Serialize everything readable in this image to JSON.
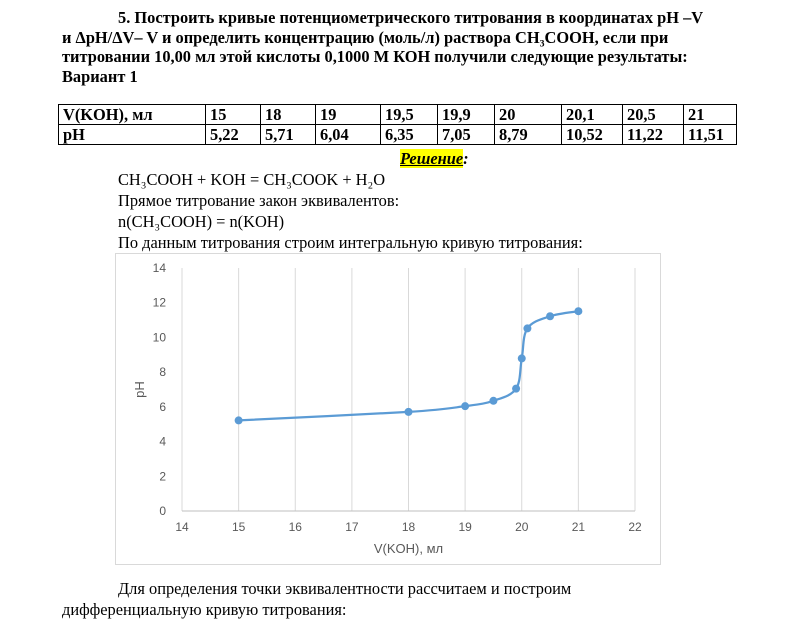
{
  "problem": {
    "line1": "5. Построить кривые потенциометрического титрования в координатах pH –V",
    "line2": "и ΔpH/ΔV– V и определить концентрацию (моль/л) раствора CH₃COOH, если при",
    "line3": "титровании 10,00 мл этой кислоты 0,1000 М КОН получили следующие результаты:",
    "variant": "Вариант 1"
  },
  "table": {
    "row1_header": "V(KOH), мл",
    "row1": [
      "15",
      "18",
      "19",
      "19,5",
      "19,9",
      "20",
      "20,1",
      "20,5",
      "21"
    ],
    "row2_header": "pH",
    "row2": [
      "5,22",
      "5,71",
      "6,04",
      "6,35",
      "7,05",
      "8,79",
      "10,52",
      "11,22",
      "11,51"
    ]
  },
  "solution": {
    "title": "Решение",
    "colon": ":",
    "reaction": "CH₃COOH + KOH = CH₃COOK + H₂O",
    "law": "Прямое титрование закон эквивалентов:",
    "equality": "n(CH₃COOH) = n(KOH)",
    "build": "По данным титрования строим интегральную кривую титрования:"
  },
  "chart_data": {
    "type": "line",
    "x": [
      15,
      18,
      19,
      19.5,
      19.9,
      20,
      20.1,
      20.5,
      21
    ],
    "y": [
      5.22,
      5.71,
      6.04,
      6.35,
      7.05,
      8.79,
      10.52,
      11.22,
      11.51
    ],
    "xlabel": "V(KOH), мл",
    "ylabel": "pH",
    "xlim": [
      14,
      22
    ],
    "ylim": [
      0,
      14
    ],
    "xticks": [
      "14",
      "15",
      "16",
      "17",
      "18",
      "19",
      "20",
      "21",
      "22"
    ],
    "yticks": [
      "0",
      "2",
      "4",
      "6",
      "8",
      "10",
      "12",
      "14"
    ],
    "grid": "vertical",
    "color": "#5b9bd5"
  },
  "bottom": {
    "line1": "Для определения точки эквивалентности рассчитаем и построим",
    "line2": "дифференциальную кривую титрования:"
  }
}
